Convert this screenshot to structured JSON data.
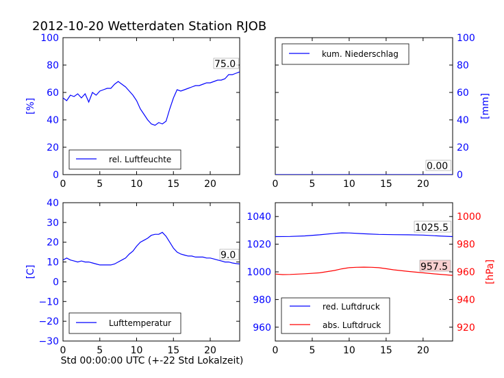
{
  "title": "2012-10-20 Wetterdaten Station RJOB",
  "colors": {
    "primary": "#0000ff",
    "secondary": "#ff0000",
    "axis": "#000000"
  },
  "chart_data": [
    {
      "id": "humidity",
      "type": "line",
      "xlim": [
        0,
        24
      ],
      "ylim": [
        0,
        100
      ],
      "x_ticks": [
        "0",
        "5",
        "10",
        "15",
        "20"
      ],
      "y_ticks": [
        "0",
        "20",
        "40",
        "60",
        "80",
        "100"
      ],
      "ylabel": "[%]",
      "legend": "rel. Luftfeuchte",
      "legend_position": "lower-left",
      "annotation": "75.0",
      "series": [
        {
          "name": "rel. Luftfeuchte",
          "x": [
            0,
            0.5,
            1,
            1.5,
            2,
            2.5,
            3,
            3.5,
            4,
            4.5,
            5,
            5.5,
            6,
            6.5,
            7,
            7.5,
            8,
            8.5,
            9,
            9.5,
            10,
            10.5,
            11,
            11.5,
            12,
            12.5,
            13,
            13.5,
            14,
            14.5,
            15,
            15.5,
            16,
            16.5,
            17,
            17.5,
            18,
            18.5,
            19,
            19.5,
            20,
            20.5,
            21,
            21.5,
            22,
            22.5,
            23,
            23.5,
            24
          ],
          "y": [
            56,
            54,
            58,
            57,
            59,
            56,
            59,
            53,
            60,
            58,
            61,
            62,
            63,
            63,
            66,
            68,
            66,
            64,
            61,
            58,
            54,
            48,
            44,
            40,
            37,
            36,
            38,
            37,
            39,
            48,
            56,
            62,
            61,
            62,
            63,
            64,
            65,
            65,
            66,
            67,
            67,
            68,
            69,
            69,
            70,
            73,
            73,
            74,
            75
          ]
        }
      ]
    },
    {
      "id": "precipitation",
      "type": "line",
      "xlim": [
        0,
        24
      ],
      "ylim": [
        0,
        100
      ],
      "x_ticks": [
        "0",
        "5",
        "10",
        "15",
        "20"
      ],
      "y_ticks": [
        "0",
        "20",
        "40",
        "60",
        "80",
        "100"
      ],
      "ylabel": "[mm]",
      "legend": "kum. Niederschlag",
      "legend_position": "upper-left",
      "annotation": "0.00",
      "series": [
        {
          "name": "kum. Niederschlag",
          "x": [
            0,
            24
          ],
          "y": [
            0,
            0
          ]
        }
      ]
    },
    {
      "id": "temperature",
      "type": "line",
      "xlim": [
        0,
        24
      ],
      "ylim": [
        -30,
        40
      ],
      "x_ticks": [
        "0",
        "5",
        "10",
        "15",
        "20"
      ],
      "y_ticks": [
        "−30",
        "−20",
        "−10",
        "0",
        "10",
        "20",
        "30",
        "40"
      ],
      "y_tick_values": [
        -30,
        -20,
        -10,
        0,
        10,
        20,
        30,
        40
      ],
      "ylabel": "[C]",
      "xlabel": "Std 00:00:00 UTC (+-22 Std Lokalzeit)",
      "legend": "Lufttemperatur",
      "legend_position": "lower-left",
      "annotation": "9.0",
      "series": [
        {
          "name": "Lufttemperatur",
          "x": [
            0,
            0.5,
            1,
            1.5,
            2,
            2.5,
            3,
            3.5,
            4,
            4.5,
            5,
            5.5,
            6,
            6.5,
            7,
            7.5,
            8,
            8.5,
            9,
            9.5,
            10,
            10.5,
            11,
            11.5,
            12,
            12.5,
            13,
            13.5,
            14,
            14.5,
            15,
            15.5,
            16,
            16.5,
            17,
            17.5,
            18,
            18.5,
            19,
            19.5,
            20,
            20.5,
            21,
            21.5,
            22,
            22.5,
            23,
            23.5,
            24
          ],
          "y": [
            11,
            12,
            11,
            10.5,
            10,
            10.5,
            10,
            10,
            9.5,
            9,
            8.5,
            8.5,
            8.5,
            8.5,
            9,
            10,
            11,
            12,
            14,
            15.5,
            18,
            20,
            21,
            22,
            23.5,
            24,
            24,
            25,
            23,
            20,
            17,
            15,
            14,
            13.5,
            13,
            13,
            12.5,
            12.5,
            12.5,
            12,
            12,
            11.5,
            11,
            10.5,
            10,
            10,
            9.5,
            9.2,
            9
          ]
        }
      ]
    },
    {
      "id": "pressure",
      "type": "line",
      "xlim": [
        0,
        24
      ],
      "ylim": [
        950,
        1050
      ],
      "y2lim": [
        910,
        1010
      ],
      "x_ticks": [
        "0",
        "5",
        "10",
        "15",
        "20"
      ],
      "y_ticks": [
        "960",
        "980",
        "1000",
        "1020",
        "1040"
      ],
      "y_tick_values": [
        960,
        980,
        1000,
        1020,
        1040
      ],
      "y2_ticks": [
        "920",
        "940",
        "960",
        "980",
        "1000"
      ],
      "y2_tick_values": [
        920,
        940,
        960,
        980,
        1000
      ],
      "y2label": "[hPa]",
      "legend_position": "lower-left",
      "annotations": [
        "1025.5",
        "957.5"
      ],
      "series": [
        {
          "name": "red. Luftdruck",
          "axis": "left",
          "x": [
            0,
            2,
            4,
            6,
            8,
            9,
            10,
            12,
            14,
            16,
            18,
            20,
            22,
            24
          ],
          "y": [
            1025.5,
            1025.6,
            1026,
            1026.8,
            1027.8,
            1028.2,
            1028.1,
            1027.5,
            1027.1,
            1026.9,
            1026.8,
            1026.6,
            1026,
            1025.5
          ]
        },
        {
          "name": "abs. Luftdruck",
          "axis": "right",
          "x": [
            0,
            1,
            2,
            4,
            6,
            8,
            9,
            10,
            11,
            12,
            13,
            14,
            15,
            16,
            18,
            20,
            22,
            24
          ],
          "y": [
            958.4,
            958,
            958.1,
            958.6,
            959.3,
            961,
            962.2,
            963,
            963.3,
            963.4,
            963.3,
            963,
            962.3,
            961.5,
            960.3,
            959.3,
            958.3,
            957.5
          ]
        }
      ]
    }
  ]
}
